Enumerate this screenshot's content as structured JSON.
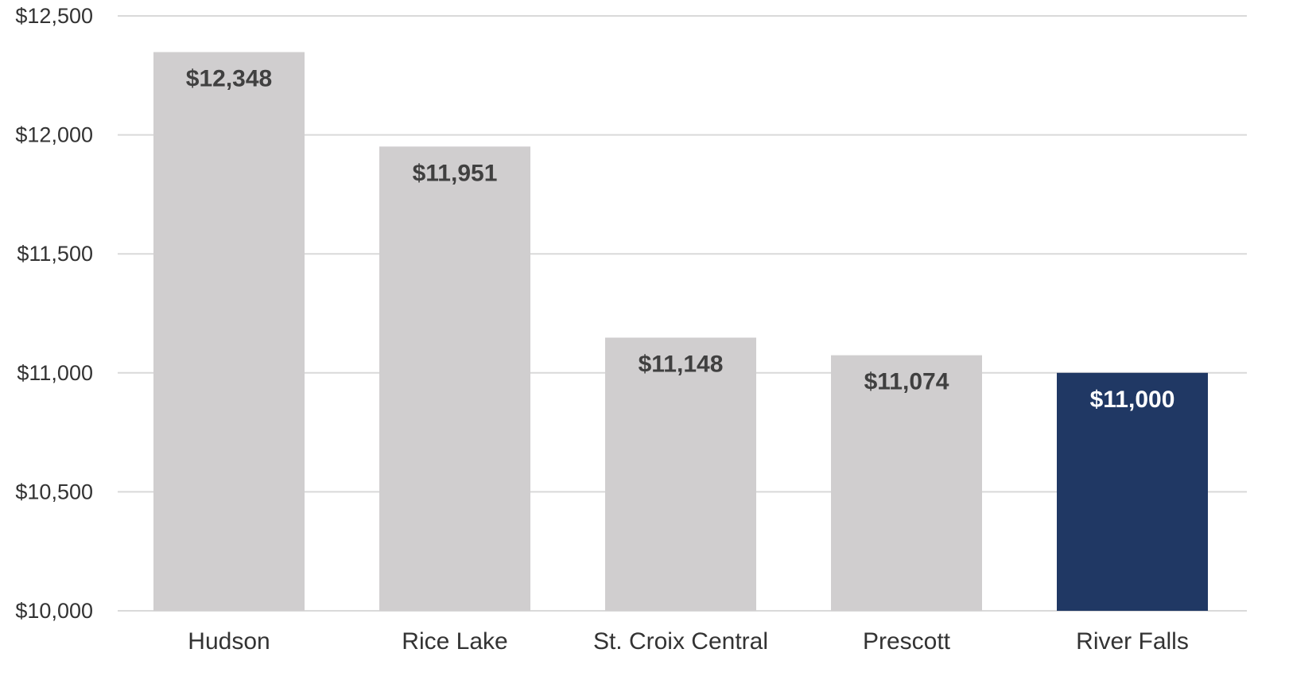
{
  "chart_data": {
    "type": "bar",
    "title": "",
    "xlabel": "",
    "ylabel": "",
    "ylim": [
      10000,
      12500
    ],
    "yticks": [
      10000,
      10500,
      11000,
      11500,
      12000,
      12500
    ],
    "ytick_labels": [
      "$10,000",
      "$10,500",
      "$11,000",
      "$11,500",
      "$12,000",
      "$12,500"
    ],
    "grid": true,
    "legend": "none",
    "categories": [
      "Hudson",
      "Rice Lake",
      "St. Croix Central",
      "Prescott",
      "River Falls"
    ],
    "values": [
      12348,
      11951,
      11148,
      11074,
      11000
    ],
    "data_labels": [
      "$12,348",
      "$11,951",
      "$11,148",
      "$11,074",
      "$11,000"
    ],
    "colors": {
      "default_bar": "#d0cecf",
      "highlight_bar": "#203864",
      "default_label": "#404040",
      "highlight_label": "#ffffff"
    },
    "highlight_index": 4
  }
}
